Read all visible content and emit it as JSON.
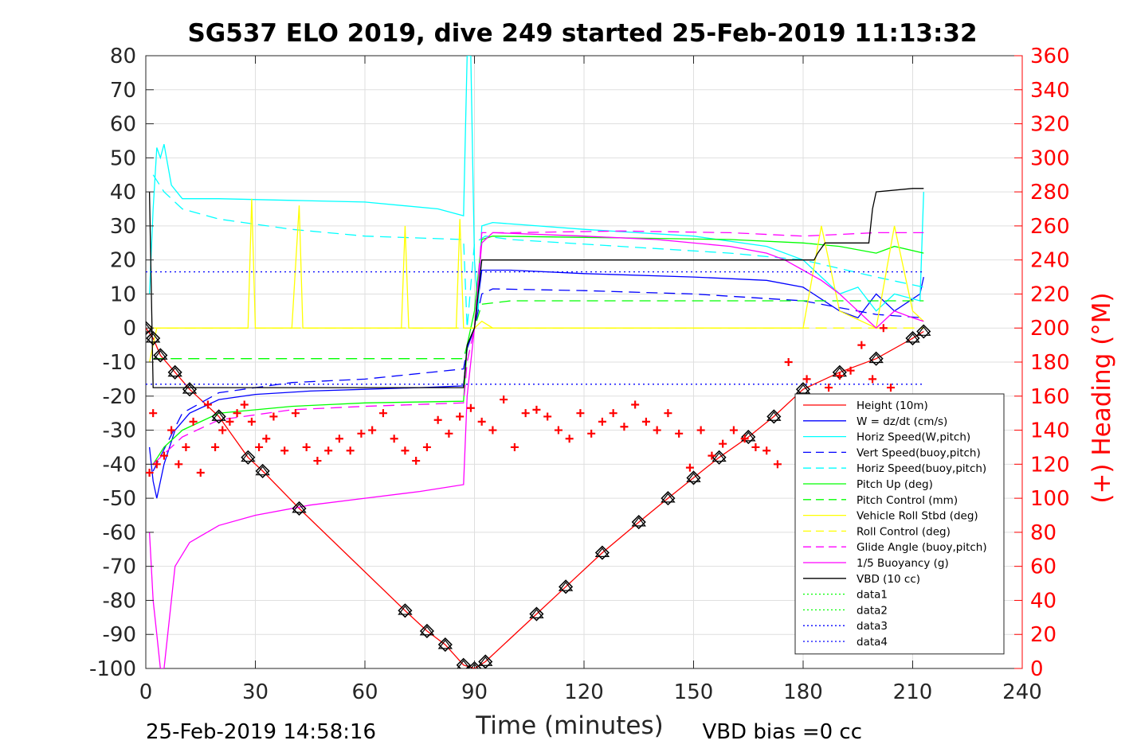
{
  "chart_data": {
    "type": "line",
    "title": "SG537 ELO 2019, dive 249 started 25-Feb-2019 11:13:32",
    "xlabel": "Time (minutes)",
    "ylabel": "",
    "y2label": "(+) Heading (°M)",
    "xlim": [
      0,
      240
    ],
    "ylim": [
      -100,
      80
    ],
    "y2lim": [
      0,
      360
    ],
    "xticks": [
      "0",
      "30",
      "60",
      "90",
      "120",
      "150",
      "180",
      "210",
      "240"
    ],
    "yticks": [
      "80",
      "70",
      "60",
      "50",
      "40",
      "30",
      "20",
      "10",
      "0",
      "-10",
      "-20",
      "-30",
      "-40",
      "-50",
      "-60",
      "-70",
      "-80",
      "-90",
      "-100"
    ],
    "y2ticks": [
      "360",
      "340",
      "320",
      "300",
      "280",
      "260",
      "240",
      "220",
      "200",
      "180",
      "160",
      "140",
      "120",
      "100",
      "80",
      "60",
      "40",
      "20",
      "0"
    ],
    "grid": true,
    "legend_position": "bottom-right",
    "footer_left": "25-Feb-2019 14:58:16",
    "footer_right": "VBD bias =0 cc",
    "series": [
      {
        "name": "Height (10m)",
        "color": "#ff0000",
        "style": "solid",
        "marker": "diamond",
        "x": [
          0,
          2,
          4,
          8,
          12,
          20,
          28,
          32,
          42,
          71,
          77,
          82,
          87,
          90,
          93,
          107,
          115,
          125,
          135,
          143,
          150,
          157,
          165,
          172,
          180,
          190,
          200,
          210,
          213
        ],
        "y": [
          0,
          -3,
          -8,
          -13,
          -18,
          -26,
          -38,
          -42,
          -53,
          -83,
          -89,
          -93,
          -99,
          -100,
          -98,
          -84,
          -76,
          -66,
          -57,
          -50,
          -44,
          -38,
          -32,
          -26,
          -18,
          -13,
          -9,
          -3,
          -1
        ]
      },
      {
        "name": "W = dz/dt (cm/s)",
        "color": "#0000ff",
        "style": "solid",
        "x": [
          1,
          2,
          3,
          5,
          8,
          12,
          20,
          30,
          45,
          60,
          75,
          87,
          88,
          90,
          92,
          100,
          120,
          150,
          170,
          180,
          190,
          195,
          200,
          205,
          212,
          213
        ],
        "y": [
          -35,
          -45,
          -50,
          -40,
          -30,
          -25,
          -21,
          -19.5,
          -18.5,
          -18,
          -17.5,
          -17,
          -6,
          0,
          17,
          17,
          16,
          15,
          14,
          12,
          5,
          3,
          10,
          5,
          10,
          15
        ]
      },
      {
        "name": "Horiz Speed(W,pitch)",
        "color": "#00ffff",
        "style": "solid",
        "x": [
          1,
          2,
          3,
          4,
          5,
          6,
          7,
          10,
          20,
          40,
          60,
          80,
          87,
          88,
          89,
          90,
          91,
          92,
          95,
          120,
          150,
          170,
          180,
          185,
          190,
          195,
          200,
          205,
          212,
          213
        ],
        "y": [
          10,
          35,
          53,
          50,
          54,
          48,
          42,
          38,
          38,
          37.5,
          37,
          35,
          33,
          80,
          80,
          20,
          5,
          30,
          31,
          29,
          27,
          24,
          20,
          15,
          10,
          12,
          5,
          10,
          8,
          40
        ]
      },
      {
        "name": "Vert Speed(buoy,pitch)",
        "color": "#0000ff",
        "style": "dashed",
        "x": [
          2,
          10,
          20,
          40,
          60,
          87,
          88,
          90,
          92,
          95,
          120,
          150,
          180,
          190,
          200,
          213
        ],
        "y": [
          -42,
          -25,
          -19,
          -16,
          -15,
          -12,
          -6,
          0,
          10,
          11.5,
          11,
          10,
          8,
          6,
          4,
          3
        ]
      },
      {
        "name": "Horiz Speed(buoy,pitch)",
        "color": "#00ffff",
        "style": "dashed",
        "x": [
          2,
          5,
          10,
          20,
          40,
          60,
          87,
          88,
          90,
          93,
          100,
          130,
          160,
          180,
          200,
          213
        ],
        "y": [
          45,
          40,
          35,
          32,
          29,
          27,
          26,
          0,
          25,
          27,
          26,
          24,
          22,
          20,
          15,
          12
        ]
      },
      {
        "name": "Pitch Up (deg)",
        "color": "#00ff00",
        "style": "solid",
        "x": [
          2,
          5,
          10,
          20,
          40,
          60,
          87,
          88,
          90,
          92,
          95,
          130,
          160,
          180,
          190,
          200,
          205,
          213
        ],
        "y": [
          -40,
          -35,
          -30,
          -25,
          -23,
          -22,
          -21.5,
          -5,
          5,
          26,
          27,
          26.5,
          26,
          25,
          24,
          22,
          24,
          22
        ]
      },
      {
        "name": "Pitch Control (mm)",
        "color": "#00ff00",
        "style": "dashed",
        "x": [
          2,
          10,
          30,
          60,
          87,
          88,
          90,
          92,
          100,
          130,
          160,
          180,
          195,
          213
        ],
        "y": [
          -9,
          -9,
          -9,
          -9,
          -9,
          -5,
          0,
          7,
          8,
          8,
          8,
          8,
          8,
          8
        ]
      },
      {
        "name": "Vehicle Roll Stbd (deg)",
        "color": "#ffff00",
        "style": "solid",
        "x": [
          1,
          3,
          5,
          10,
          20,
          28,
          29,
          30,
          40,
          42,
          43,
          50,
          70,
          71,
          72,
          80,
          85,
          86,
          87,
          90,
          92,
          95,
          100,
          110,
          130,
          150,
          160,
          170,
          180,
          185,
          190,
          200,
          205,
          210,
          213
        ],
        "y": [
          -10,
          0,
          0,
          0,
          0,
          0,
          38,
          0,
          0,
          36,
          0,
          0,
          0,
          30,
          0,
          0,
          0,
          32,
          0,
          0,
          2,
          0,
          0,
          0,
          0,
          0,
          0,
          0,
          0,
          30,
          5,
          0,
          30,
          5,
          2
        ]
      },
      {
        "name": "Roll Control (deg)",
        "color": "#ffff00",
        "style": "dashed",
        "x": [
          1,
          20,
          60,
          88,
          90,
          150,
          213
        ],
        "y": [
          0,
          0,
          0,
          0,
          0,
          0,
          0
        ]
      },
      {
        "name": "Glide Angle (buoy,pitch)",
        "color": "#ff00ff",
        "style": "dashed",
        "x": [
          2,
          10,
          20,
          40,
          60,
          87,
          88,
          90,
          92,
          100,
          130,
          160,
          180,
          200,
          210,
          213
        ],
        "y": [
          -40,
          -32,
          -27,
          -24,
          -23,
          -22,
          -10,
          0,
          28,
          28,
          28.5,
          28,
          27,
          28,
          28,
          28
        ]
      },
      {
        "name": "1/5 Buoyancy (g)",
        "color": "#ff00ff",
        "style": "solid",
        "x": [
          1,
          2,
          3,
          4,
          5,
          8,
          12,
          20,
          30,
          45,
          60,
          75,
          87,
          88,
          90,
          92,
          95,
          120,
          140,
          160,
          170,
          175,
          180,
          185,
          190,
          195,
          200,
          205,
          210,
          213
        ],
        "y": [
          -60,
          -80,
          -90,
          -100,
          -100,
          -70,
          -63,
          -58,
          -55,
          -52,
          -50,
          -48,
          -46,
          -20,
          0,
          25,
          28,
          27,
          26,
          24,
          22,
          20,
          17,
          14,
          10,
          5,
          0,
          5,
          3,
          2
        ]
      },
      {
        "name": "VBD (10 cc)",
        "color": "#000000",
        "style": "solid",
        "x": [
          1,
          2,
          87,
          88,
          90,
          92,
          183,
          184,
          186,
          198,
          199,
          200,
          210,
          213
        ],
        "y": [
          40,
          -17.5,
          -17.5,
          -5,
          0,
          20,
          20,
          22,
          25,
          25,
          35,
          40,
          41,
          41
        ]
      },
      {
        "name": "data1",
        "color": "#00ff00",
        "style": "dotted",
        "x": [],
        "y": []
      },
      {
        "name": "data2",
        "color": "#00ff00",
        "style": "dotted",
        "x": [],
        "y": []
      },
      {
        "name": "data3",
        "color": "#0000ff",
        "style": "dotted",
        "x": [
          0,
          213
        ],
        "y": [
          16.5,
          16.5
        ]
      },
      {
        "name": "data4",
        "color": "#0000ff",
        "style": "dotted",
        "x": [
          0,
          213
        ],
        "y": [
          -16.5,
          -16.5
        ]
      }
    ],
    "heading_series": {
      "axis": "right",
      "color": "#ff0000",
      "marker": "plus",
      "x": [
        1,
        2,
        3,
        5,
        7,
        9,
        11,
        13,
        15,
        17,
        19,
        21,
        23,
        25,
        27,
        29,
        31,
        33,
        35,
        38,
        41,
        44,
        47,
        50,
        53,
        56,
        59,
        62,
        65,
        68,
        71,
        74,
        77,
        80,
        83,
        86,
        89,
        92,
        95,
        98,
        101,
        104,
        107,
        110,
        113,
        116,
        119,
        122,
        125,
        128,
        131,
        134,
        137,
        140,
        143,
        146,
        149,
        152,
        155,
        158,
        161,
        164,
        167,
        170,
        173,
        176,
        179,
        181,
        184,
        187,
        190,
        193,
        196,
        199,
        202,
        204
      ],
      "y": [
        115,
        150,
        120,
        125,
        140,
        120,
        130,
        145,
        115,
        155,
        130,
        140,
        145,
        150,
        155,
        145,
        130,
        135,
        148,
        128,
        150,
        130,
        122,
        128,
        135,
        128,
        138,
        140,
        150,
        135,
        128,
        122,
        130,
        146,
        138,
        148,
        153,
        145,
        140,
        158,
        130,
        150,
        152,
        148,
        140,
        135,
        150,
        138,
        145,
        150,
        142,
        155,
        145,
        140,
        150,
        138,
        118,
        140,
        125,
        132,
        140,
        135,
        130,
        128,
        120,
        180,
        155,
        170,
        135,
        165,
        172,
        175,
        190,
        170,
        200,
        165
      ]
    }
  }
}
